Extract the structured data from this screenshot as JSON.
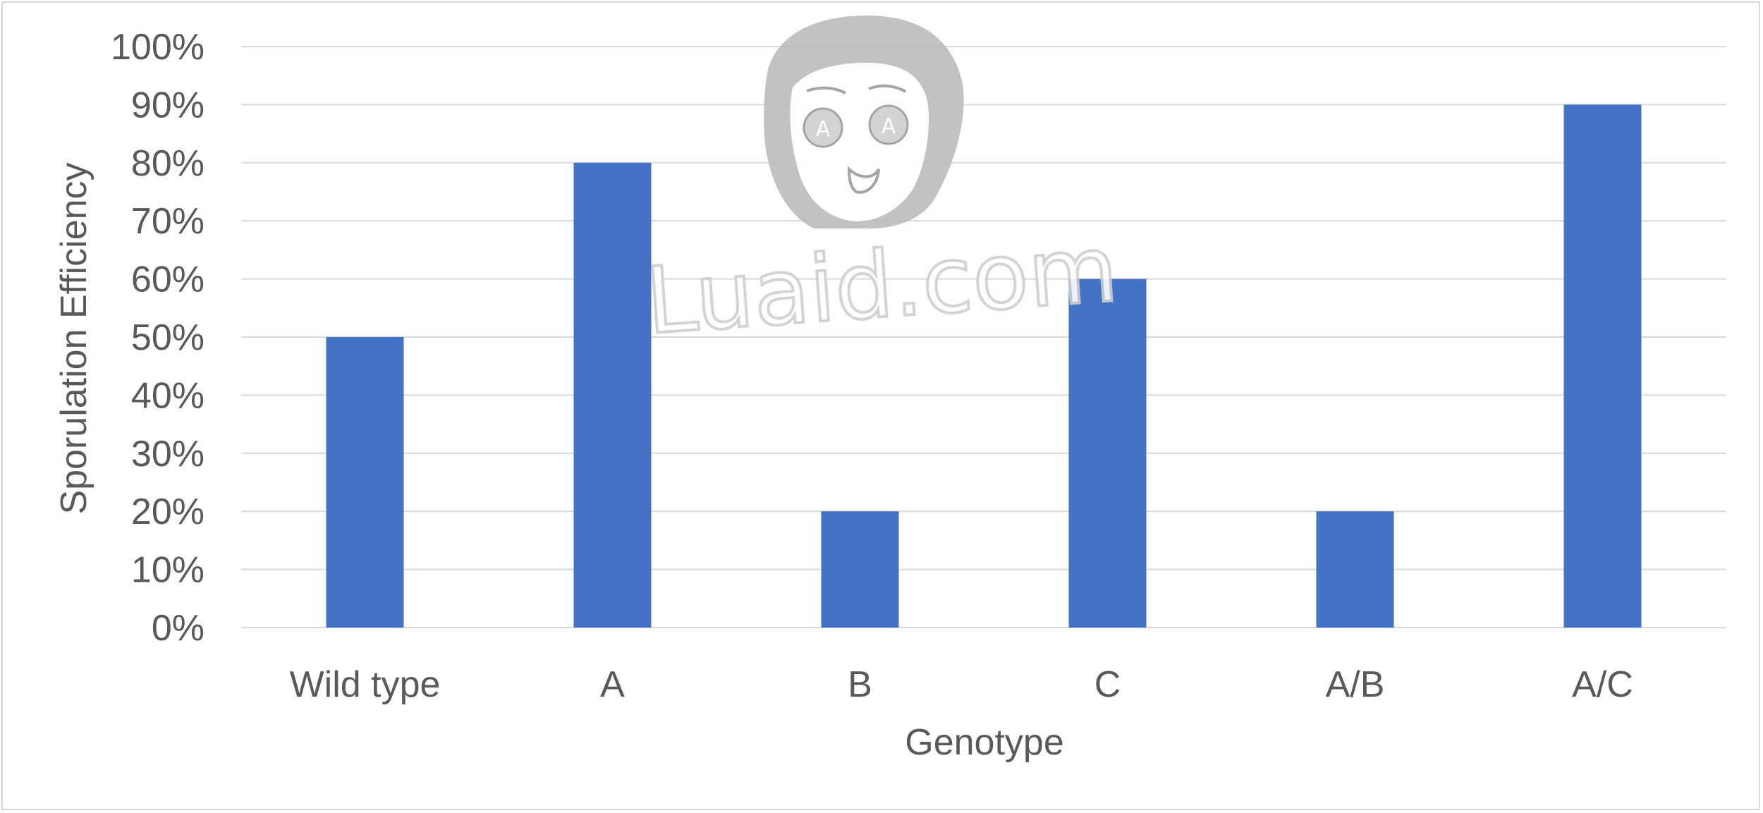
{
  "chart_data": {
    "type": "bar",
    "categories": [
      "Wild type",
      "A",
      "B",
      "C",
      "A/B",
      "A/C"
    ],
    "values": [
      50,
      80,
      20,
      60,
      20,
      90
    ],
    "y_unit": "%",
    "ylim": [
      0,
      100
    ],
    "y_ticks": [
      0,
      10,
      20,
      30,
      40,
      50,
      60,
      70,
      80,
      90,
      100
    ],
    "y_tick_labels": [
      "0%",
      "10%",
      "20%",
      "30%",
      "40%",
      "50%",
      "60%",
      "70%",
      "80%",
      "90%",
      "100%"
    ],
    "xlabel": "Genotype",
    "ylabel": "Sporulation Efficiency",
    "grid": true,
    "legend": "none",
    "colors": {
      "bar": "#4472c4",
      "grid": "#d9d9d9",
      "text": "#595959"
    }
  },
  "watermark": {
    "text": "Luaid.com",
    "badge_text": "A"
  }
}
